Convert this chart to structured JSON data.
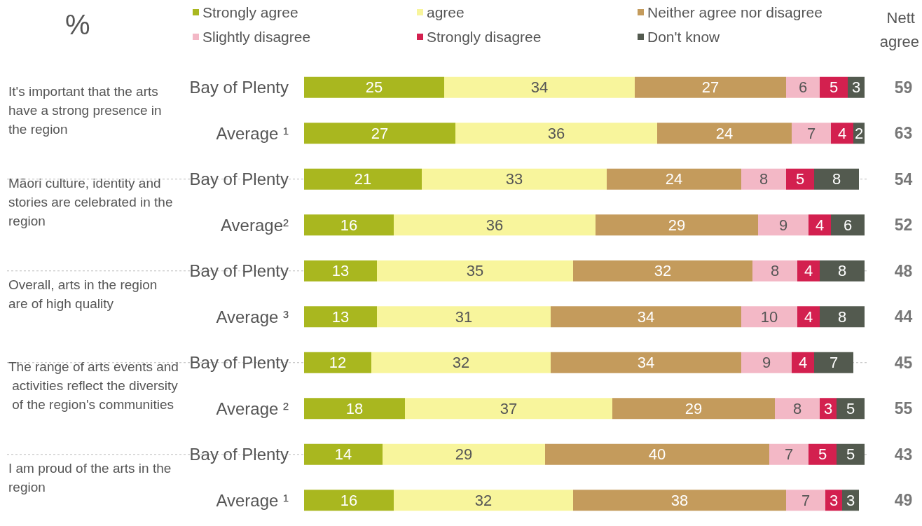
{
  "chart_data": [
    {
      "type": "bar",
      "orientation": "horizontal",
      "stacked": true,
      "title": "%",
      "categories": [
        "Bay of Plenty",
        "Average ¹",
        "Bay of Plenty",
        "Average²",
        "Bay of Plenty",
        "Average ³",
        "Bay of Plenty",
        "Average ²",
        "Bay of Plenty",
        "Average ¹"
      ],
      "series": [
        {
          "name": "Strongly agree",
          "color": "#a9b71f",
          "values": [
            25,
            27,
            21,
            16,
            13,
            13,
            12,
            18,
            14,
            16
          ]
        },
        {
          "name": "agree",
          "color": "#f8f59c",
          "values": [
            34,
            36,
            33,
            36,
            35,
            31,
            32,
            37,
            29,
            32
          ]
        },
        {
          "name": "Neither agree nor disagree",
          "color": "#c49b5c",
          "values": [
            27,
            24,
            24,
            29,
            32,
            34,
            34,
            29,
            40,
            38
          ]
        },
        {
          "name": "Slightly disagree",
          "color": "#f3b8c6",
          "values": [
            6,
            7,
            8,
            9,
            8,
            10,
            9,
            8,
            7,
            7
          ]
        },
        {
          "name": "Strongly disagree",
          "color": "#d3204f",
          "values": [
            5,
            4,
            5,
            4,
            4,
            4,
            4,
            3,
            5,
            3
          ]
        },
        {
          "name": "Don't know",
          "color": "#535a4f",
          "values": [
            3,
            2,
            8,
            6,
            8,
            8,
            7,
            5,
            5,
            3
          ]
        }
      ],
      "xlim": [
        0,
        100
      ],
      "tick_labels": "y",
      "data_labels": true,
      "legend": "top",
      "annotations": [
        "It's important that the arts have a strong presence in the region",
        "Māori culture, identity and stories are celebrated in the region",
        "Overall, arts in the region are of high quality",
        "The range of arts events and activities reflect the diversity of the region's communities",
        "I am proud of the arts in the region"
      ]
    },
    {
      "type": "other",
      "title": "Nett agree",
      "categories": [
        null,
        null,
        null,
        null,
        null,
        null,
        null,
        null,
        null,
        null
      ],
      "values": [
        59,
        63,
        54,
        52,
        48,
        44,
        45,
        55,
        43,
        49
      ],
      "data_labels": true
    }
  ]
}
